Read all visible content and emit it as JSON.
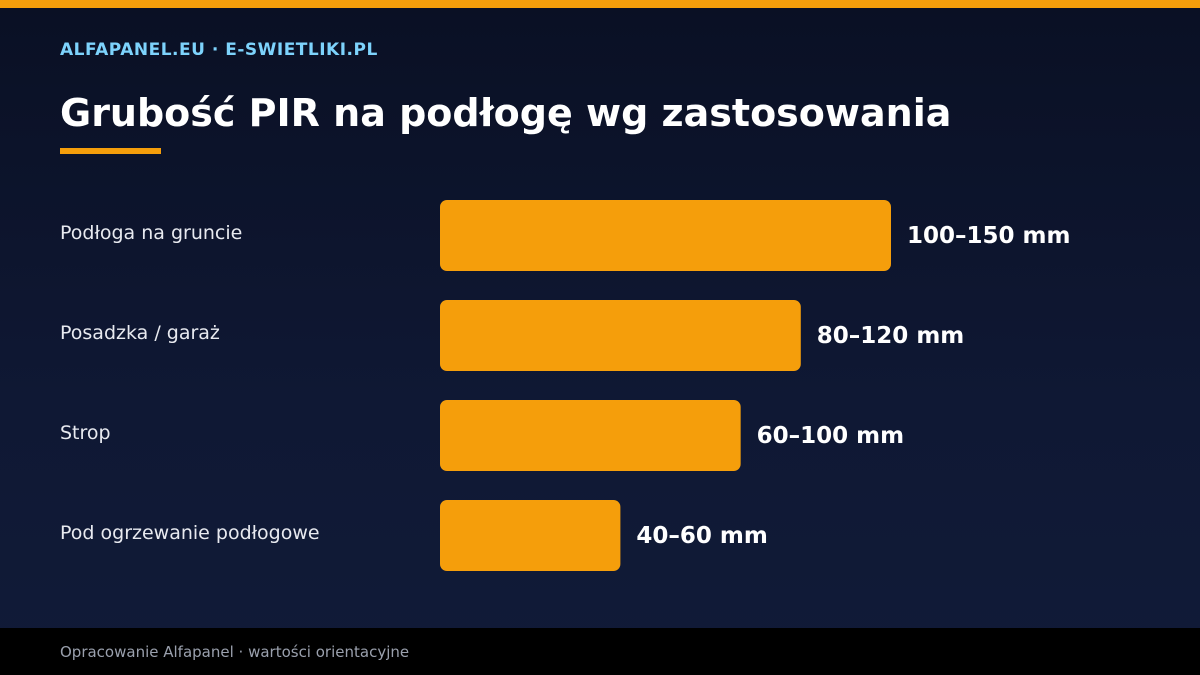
{
  "colors": {
    "accent": "#f59e0b",
    "brand": "#7dd3fc",
    "text": "#ffffff",
    "category_text": "#e8eaf0",
    "footer_text": "#9aa0ad"
  },
  "header": {
    "brand": "ALFAPANEL.EU · E-SWIETLIKI.PL"
  },
  "footer": {
    "note": "Opracowanie Alfapanel · wartości orientacyjne"
  },
  "chart_data": {
    "type": "bar",
    "orientation": "horizontal",
    "title": "Grubość PIR na podłogę wg zastosowania",
    "unit": "mm",
    "categories": [
      "Podłoga na gruncie",
      "Posadzka / garaż",
      "Strop",
      "Pod ogrzewanie podłogowe"
    ],
    "values": [
      150,
      120,
      100,
      60
    ],
    "ranges": [
      [
        100,
        150
      ],
      [
        80,
        120
      ],
      [
        60,
        100
      ],
      [
        40,
        60
      ]
    ],
    "value_labels": [
      "100–150 mm",
      "80–120 mm",
      "60–100 mm",
      "40–60 mm"
    ],
    "xlim": [
      0,
      150
    ],
    "grid": false,
    "legend": "none"
  }
}
